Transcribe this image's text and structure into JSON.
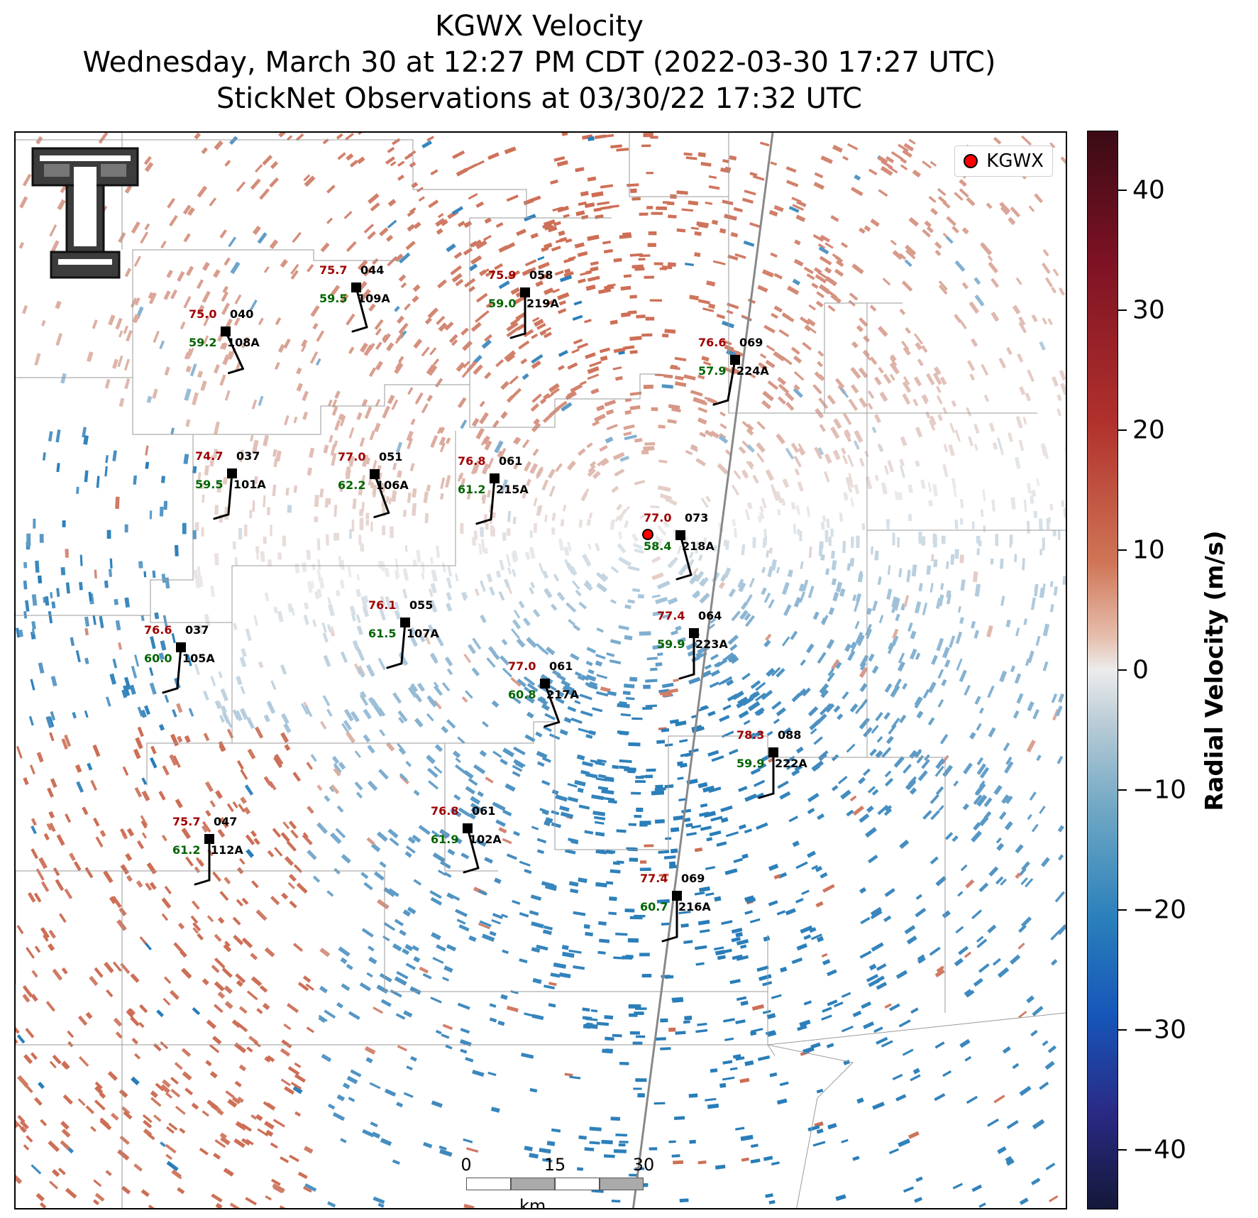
{
  "title": {
    "line1": "KGWX Velocity",
    "line2": "Wednesday, March 30 at 12:27 PM CDT (2022-03-30 17:27 UTC)",
    "line3": "StickNet Observations at 03/30/22 17:32 UTC"
  },
  "legend": {
    "label": "KGWX",
    "marker_color": "#ff0000"
  },
  "colorbar": {
    "title": "Radial Velocity (m/s)",
    "range": [
      -45,
      45
    ],
    "ticks": [
      "40",
      "30",
      "20",
      "10",
      "0",
      "−10",
      "−20",
      "−30",
      "−40"
    ],
    "tick_values": [
      40,
      30,
      20,
      10,
      0,
      -10,
      -20,
      -30,
      -40
    ],
    "colors": {
      "max": "#3a0b15",
      "positive": "#b0312c",
      "zero": "#ececec",
      "negative": "#2b80bb",
      "min": "#141838"
    }
  },
  "scale_bar": {
    "ticks": [
      "0",
      "15",
      "30"
    ],
    "unit": "km"
  },
  "logo": {
    "icon": "double-t-logo-icon"
  },
  "radar_site": {
    "name": "KGWX"
  },
  "stations": [
    {
      "name": "109A",
      "temp": "75.7",
      "dew": "59.5",
      "id": "044"
    },
    {
      "name": "219A",
      "temp": "75.9",
      "dew": "59.0",
      "id": "058"
    },
    {
      "name": "108A",
      "temp": "75.0",
      "dew": "59.2",
      "id": "040"
    },
    {
      "name": "224A",
      "temp": "76.6",
      "dew": "57.9",
      "id": "069"
    },
    {
      "name": "101A",
      "temp": "74.7",
      "dew": "59.5",
      "id": "037"
    },
    {
      "name": "106A",
      "temp": "77.0",
      "dew": "62.2",
      "id": "051"
    },
    {
      "name": "215A",
      "temp": "76.8",
      "dew": "61.2",
      "id": "061"
    },
    {
      "name": "218A",
      "temp": "77.0",
      "dew": "58.4",
      "id": "073"
    },
    {
      "name": "107A",
      "temp": "76.1",
      "dew": "61.5",
      "id": "055"
    },
    {
      "name": "223A",
      "temp": "77.4",
      "dew": "59.9",
      "id": "064"
    },
    {
      "name": "105A",
      "temp": "76.6",
      "dew": "60.0",
      "id": "037"
    },
    {
      "name": "217A",
      "temp": "77.0",
      "dew": "60.8",
      "id": "061"
    },
    {
      "name": "222A",
      "temp": "78.3",
      "dew": "59.9",
      "id": "088"
    },
    {
      "name": "102A",
      "temp": "76.8",
      "dew": "61.9",
      "id": "061"
    },
    {
      "name": "112A",
      "temp": "75.7",
      "dew": "61.2",
      "id": "047"
    },
    {
      "name": "216A",
      "temp": "77.4",
      "dew": "60.7",
      "id": "069"
    }
  ]
}
